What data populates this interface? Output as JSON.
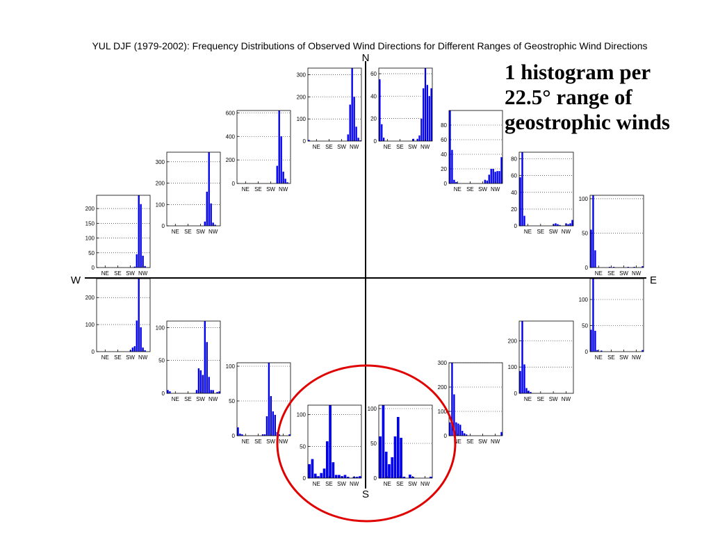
{
  "chart_data": {
    "type": "bar",
    "title": "YUL DJF (1979-2002): Frequency Distributions of Observed Wind Directions for Different Ranges of Geostrophic Wind Directions",
    "compass": {
      "north": "N",
      "east": "E",
      "south": "S",
      "west": "W"
    },
    "categories": [
      "NE",
      "SE",
      "SW",
      "NW"
    ],
    "bar_color": "#0000ee",
    "highlight_color": "#e00000",
    "annotation": [
      "1 histogram per",
      "22.5° range of",
      "geostrophic winds"
    ],
    "panels": [
      {
        "id": "nnw",
        "ylim": [
          0,
          330
        ],
        "yticks": [
          0,
          100,
          200,
          300
        ],
        "values": [
          5,
          0,
          0,
          0,
          0,
          0,
          0,
          0,
          0,
          0,
          0,
          0,
          0,
          0,
          0,
          0,
          0,
          0,
          0,
          30,
          165,
          330,
          200,
          65,
          15,
          3
        ]
      },
      {
        "id": "nw",
        "ylim": [
          0,
          620
        ],
        "yticks": [
          0,
          200,
          400,
          600
        ],
        "values": [
          0,
          0,
          0,
          0,
          0,
          0,
          0,
          0,
          0,
          0,
          0,
          0,
          0,
          0,
          0,
          0,
          0,
          0,
          0,
          150,
          620,
          400,
          100,
          40,
          10,
          0
        ]
      },
      {
        "id": "wnw",
        "ylim": [
          0,
          345
        ],
        "yticks": [
          0,
          100,
          200,
          300
        ],
        "values": [
          0,
          0,
          0,
          0,
          0,
          0,
          0,
          0,
          0,
          0,
          0,
          0,
          0,
          0,
          0,
          0,
          0,
          0,
          20,
          160,
          345,
          105,
          15,
          5,
          0,
          0
        ]
      },
      {
        "id": "w-upper",
        "ylim": [
          0,
          245
        ],
        "yticks": [
          0,
          50,
          100,
          150,
          200
        ],
        "values": [
          0,
          0,
          0,
          0,
          0,
          0,
          0,
          0,
          0,
          0,
          0,
          0,
          0,
          0,
          0,
          0,
          0,
          0,
          3,
          45,
          245,
          215,
          40,
          5,
          0,
          0
        ]
      },
      {
        "id": "w-lower",
        "ylim": [
          0,
          270
        ],
        "yticks": [
          0,
          100,
          200
        ],
        "values": [
          0,
          0,
          0,
          0,
          0,
          0,
          0,
          0,
          0,
          0,
          0,
          0,
          0,
          0,
          0,
          0,
          5,
          15,
          20,
          115,
          270,
          90,
          15,
          5,
          0,
          0
        ]
      },
      {
        "id": "wsw",
        "ylim": [
          0,
          110
        ],
        "yticks": [
          0,
          50,
          100
        ],
        "values": [
          5,
          3,
          0,
          0,
          0,
          0,
          0,
          0,
          0,
          0,
          0,
          0,
          0,
          0,
          5,
          38,
          35,
          28,
          110,
          78,
          25,
          5,
          5,
          0,
          2,
          3
        ]
      },
      {
        "id": "sw",
        "ylim": [
          0,
          105
        ],
        "yticks": [
          0,
          50,
          100
        ],
        "values": [
          12,
          3,
          2,
          0,
          0,
          0,
          0,
          0,
          0,
          0,
          0,
          0,
          2,
          2,
          28,
          105,
          57,
          35,
          30,
          5,
          2,
          0,
          0,
          0,
          0,
          2
        ]
      },
      {
        "id": "ssw",
        "ylim": [
          0,
          115
        ],
        "yticks": [
          0,
          50,
          100
        ],
        "values": [
          22,
          30,
          7,
          3,
          8,
          15,
          58,
          115,
          25,
          5,
          5,
          3,
          5,
          2,
          0,
          2,
          2,
          3
        ]
      },
      {
        "id": "sse",
        "ylim": [
          0,
          105
        ],
        "yticks": [
          0,
          50,
          100
        ],
        "values": [
          60,
          105,
          38,
          20,
          30,
          60,
          88,
          58,
          2,
          0,
          5,
          2,
          0,
          0,
          0,
          0,
          0,
          2
        ]
      },
      {
        "id": "se",
        "ylim": [
          0,
          300
        ],
        "yticks": [
          0,
          100,
          200,
          300
        ],
        "values": [
          55,
          300,
          170,
          55,
          50,
          45,
          20,
          10,
          5,
          0,
          0,
          0,
          0,
          0,
          0,
          0,
          0,
          0,
          0,
          0,
          0,
          0,
          0,
          0,
          0,
          15
        ]
      },
      {
        "id": "ese",
        "ylim": [
          0,
          275
        ],
        "yticks": [
          0,
          100,
          200
        ],
        "values": [
          85,
          275,
          110,
          20,
          10,
          5,
          0,
          0,
          0,
          0,
          0,
          0,
          0,
          0,
          0,
          0,
          0,
          0,
          0,
          0,
          0,
          0,
          0,
          0,
          0,
          0
        ]
      },
      {
        "id": "e-lower",
        "ylim": [
          0,
          140
        ],
        "yticks": [
          0,
          50,
          100
        ],
        "values": [
          42,
          140,
          40,
          3,
          0,
          2,
          0,
          0,
          0,
          0,
          0,
          0,
          0,
          0,
          0,
          0,
          0,
          0,
          0,
          0,
          0,
          0,
          0,
          0,
          0,
          3
        ]
      },
      {
        "id": "e-upper",
        "ylim": [
          0,
          105
        ],
        "yticks": [
          0,
          50,
          100
        ],
        "values": [
          55,
          105,
          25,
          0,
          0,
          0,
          0,
          0,
          0,
          1,
          0,
          1,
          0,
          0,
          0,
          0,
          0,
          0,
          1,
          0,
          0,
          1,
          0,
          0,
          0,
          2
        ]
      },
      {
        "id": "ene",
        "ylim": [
          0,
          88
        ],
        "yticks": [
          0,
          20,
          40,
          60,
          80
        ],
        "values": [
          58,
          88,
          12,
          0,
          0,
          0,
          0,
          0,
          0,
          0,
          0,
          0,
          0,
          0,
          0,
          0,
          2,
          3,
          2,
          1,
          0,
          0,
          3,
          2,
          3,
          7
        ]
      },
      {
        "id": "ne",
        "ylim": [
          0,
          100
        ],
        "yticks": [
          0,
          20,
          40,
          60,
          80
        ],
        "values": [
          100,
          46,
          5,
          2,
          0,
          0,
          0,
          0,
          0,
          0,
          0,
          0,
          0,
          0,
          0,
          0,
          0,
          5,
          4,
          12,
          20,
          20,
          16,
          17,
          17,
          36
        ]
      },
      {
        "id": "nne",
        "ylim": [
          0,
          65
        ],
        "yticks": [
          0,
          20,
          40,
          60
        ],
        "values": [
          55,
          15,
          3,
          0,
          0,
          0,
          0,
          0,
          0,
          0,
          0,
          0,
          0,
          0,
          0,
          0,
          0,
          2,
          0,
          2,
          5,
          20,
          47,
          65,
          50,
          40,
          47
        ]
      }
    ]
  }
}
